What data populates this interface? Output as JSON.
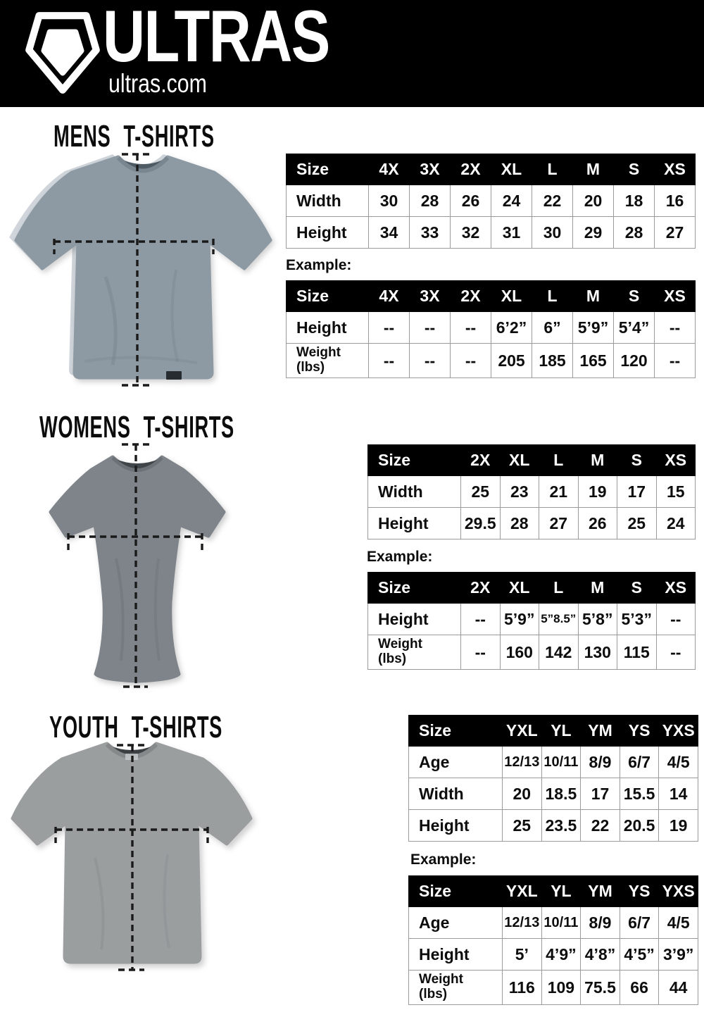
{
  "header": {
    "brand": "ULTRAS",
    "domain": "ultras.com",
    "background": "#000000"
  },
  "colors": {
    "mens_shirt": "#8d99a3",
    "mens_ghost": "#cfd5da",
    "mens_neck": "#4e5a64",
    "mens_band": "#79858f",
    "womens_shirt": "#7e8489",
    "womens_neck": "#3f4549",
    "womens_band": "#6b7176",
    "youth_shirt": "#9a9e9f",
    "youth_neck": "#3c4043",
    "youth_band": "#85898a",
    "dash": "#1a1a1a",
    "table_header_bg": "#000000",
    "table_header_text": "#ffffff",
    "table_border": "#9a9a9a",
    "tag": "#272c30"
  },
  "sections": [
    {
      "title": "MENS T-SHIRTS",
      "example_label": "Example:",
      "size_table": {
        "columns": [
          "Size",
          "4X",
          "3X",
          "2X",
          "XL",
          "L",
          "M",
          "S",
          "XS"
        ],
        "rows": [
          {
            "label": "Width",
            "values": [
              "30",
              "28",
              "26",
              "24",
              "22",
              "20",
              "18",
              "16"
            ]
          },
          {
            "label": "Height",
            "values": [
              "34",
              "33",
              "32",
              "31",
              "30",
              "29",
              "28",
              "27"
            ]
          }
        ]
      },
      "example_table": {
        "columns": [
          "Size",
          "4X",
          "3X",
          "2X",
          "XL",
          "L",
          "M",
          "S",
          "XS"
        ],
        "rows": [
          {
            "label": "Height",
            "values": [
              "--",
              "--",
              "--",
              "6’2”",
              "6”",
              "5’9”",
              "5’4”",
              "--"
            ]
          },
          {
            "label": [
              "Weight",
              "(lbs)"
            ],
            "values": [
              "--",
              "--",
              "--",
              "205",
              "185",
              "165",
              "120",
              "--"
            ]
          }
        ]
      }
    },
    {
      "title": "WOMENS T-SHIRTS",
      "example_label": "Example:",
      "size_table": {
        "columns": [
          "Size",
          "2X",
          "XL",
          "L",
          "M",
          "S",
          "XS"
        ],
        "rows": [
          {
            "label": "Width",
            "values": [
              "25",
              "23",
              "21",
              "19",
              "17",
              "15"
            ]
          },
          {
            "label": "Height",
            "values": [
              "29.5",
              "28",
              "27",
              "26",
              "25",
              "24"
            ]
          }
        ]
      },
      "example_table": {
        "columns": [
          "Size",
          "2X",
          "XL",
          "L",
          "M",
          "S",
          "XS"
        ],
        "rows": [
          {
            "label": "Height",
            "values": [
              "--",
              "5’9”",
              "5”8.5”",
              "5’8”",
              "5’3”",
              "--"
            ]
          },
          {
            "label": [
              "Weight",
              "(lbs)"
            ],
            "values": [
              "--",
              "160",
              "142",
              "130",
              "115",
              "--"
            ]
          }
        ]
      }
    },
    {
      "title": "YOUTH T-SHIRTS",
      "example_label": "Example:",
      "size_table": {
        "columns": [
          "Size",
          "YXL",
          "YL",
          "YM",
          "YS",
          "YXS"
        ],
        "rows": [
          {
            "label": "Age",
            "values": [
              "12/13",
              "10/11",
              "8/9",
              "6/7",
              "4/5"
            ]
          },
          {
            "label": "Width",
            "values": [
              "20",
              "18.5",
              "17",
              "15.5",
              "14"
            ]
          },
          {
            "label": "Height",
            "values": [
              "25",
              "23.5",
              "22",
              "20.5",
              "19"
            ]
          }
        ]
      },
      "example_table": {
        "columns": [
          "Size",
          "YXL",
          "YL",
          "YM",
          "YS",
          "YXS"
        ],
        "rows": [
          {
            "label": "Age",
            "values": [
              "12/13",
              "10/11",
              "8/9",
              "6/7",
              "4/5"
            ]
          },
          {
            "label": "Height",
            "values": [
              "5’",
              "4’9”",
              "4’8”",
              "4’5”",
              "3’9”"
            ]
          },
          {
            "label": [
              "Weight",
              "(lbs)"
            ],
            "values": [
              "116",
              "109",
              "75.5",
              "66",
              "44"
            ]
          }
        ]
      }
    }
  ]
}
